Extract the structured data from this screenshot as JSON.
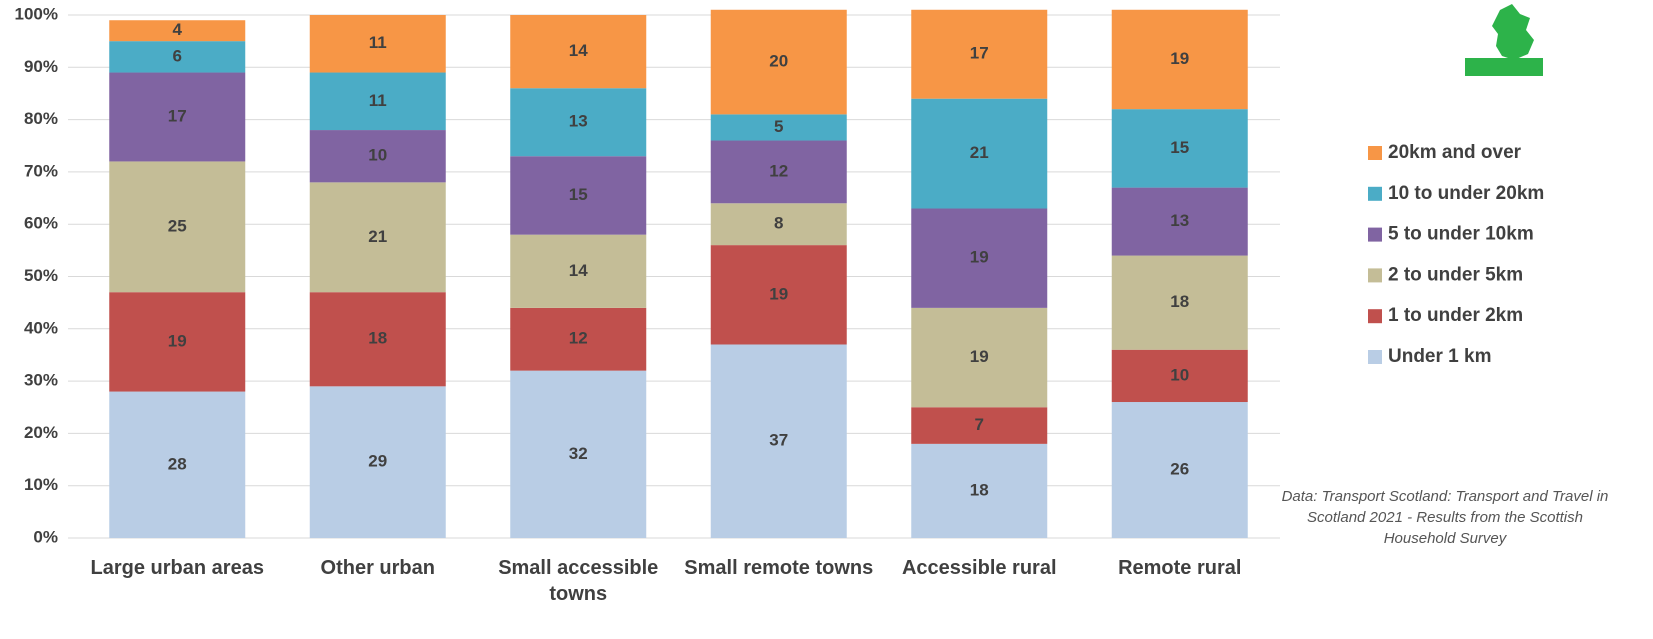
{
  "chart_data": {
    "type": "stacked_bar",
    "categories": [
      "Large urban areas",
      "Other urban",
      "Small accessible towns",
      "Small remote towns",
      "Accessible rural",
      "Remote rural"
    ],
    "series": [
      {
        "name": "Under 1 km",
        "color": "#b9cde5",
        "values": [
          28,
          29,
          32,
          37,
          18,
          26
        ]
      },
      {
        "name": "1 to under 2km",
        "color": "#c0504d",
        "values": [
          19,
          18,
          12,
          19,
          7,
          10
        ]
      },
      {
        "name": "2 to under 5km",
        "color": "#c4bd97",
        "values": [
          25,
          21,
          14,
          8,
          19,
          18
        ]
      },
      {
        "name": "5 to under 10km",
        "color": "#8064a2",
        "values": [
          17,
          10,
          15,
          12,
          19,
          13
        ]
      },
      {
        "name": "10 to under 20km",
        "color": "#4bacc6",
        "values": [
          6,
          11,
          13,
          5,
          21,
          15
        ]
      },
      {
        "name": "20km and over",
        "color": "#f79646",
        "values": [
          4,
          11,
          14,
          20,
          17,
          19
        ]
      }
    ],
    "ylim": [
      0,
      100
    ],
    "yticks": [
      {
        "value": 0,
        "label": "0%"
      },
      {
        "value": 10,
        "label": "10%"
      },
      {
        "value": 20,
        "label": "20%"
      },
      {
        "value": 30,
        "label": "30%"
      },
      {
        "value": 40,
        "label": "40%"
      },
      {
        "value": 50,
        "label": "50%"
      },
      {
        "value": 60,
        "label": "60%"
      },
      {
        "value": 70,
        "label": "70%"
      },
      {
        "value": 80,
        "label": "80%"
      },
      {
        "value": 90,
        "label": "90%"
      },
      {
        "value": 100,
        "label": "100%"
      }
    ],
    "grid": true,
    "legend": "right",
    "note": "Data: Transport Scotland: Transport and Travel in Scotland 2021 - Results from the Scottish Household Survey"
  }
}
